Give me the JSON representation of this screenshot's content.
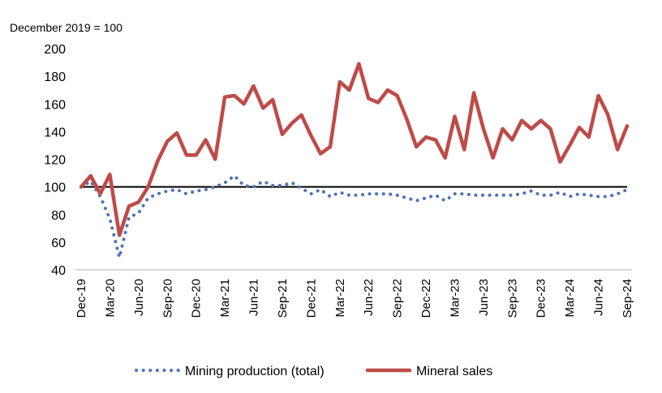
{
  "chart_data": {
    "type": "line",
    "title": "",
    "unit_label": "December 2019 = 100",
    "xlabel": "",
    "ylabel": "",
    "ylim": [
      40,
      200
    ],
    "yticks": [
      40,
      60,
      80,
      100,
      120,
      140,
      160,
      180,
      200
    ],
    "reference_line": 100,
    "grid": false,
    "legend_position": "bottom",
    "x": [
      "Dec-19",
      "Jan-20",
      "Feb-20",
      "Mar-20",
      "Apr-20",
      "May-20",
      "Jun-20",
      "Jul-20",
      "Aug-20",
      "Sep-20",
      "Oct-20",
      "Nov-20",
      "Dec-20",
      "Jan-21",
      "Feb-21",
      "Mar-21",
      "Apr-21",
      "May-21",
      "Jun-21",
      "Jul-21",
      "Aug-21",
      "Sep-21",
      "Oct-21",
      "Nov-21",
      "Dec-21",
      "Jan-22",
      "Feb-22",
      "Mar-22",
      "Apr-22",
      "May-22",
      "Jun-22",
      "Jul-22",
      "Aug-22",
      "Sep-22",
      "Oct-22",
      "Nov-22",
      "Dec-22",
      "Jan-23",
      "Feb-23",
      "Mar-23",
      "Apr-23",
      "May-23",
      "Jun-23",
      "Jul-23",
      "Aug-23",
      "Sep-23",
      "Oct-23",
      "Nov-23",
      "Dec-23",
      "Jan-24",
      "Feb-24",
      "Mar-24",
      "Apr-24",
      "May-24",
      "Jun-24",
      "Jul-24",
      "Aug-24",
      "Sep-24"
    ],
    "xtick_labels": [
      "Dec-19",
      "Mar-20",
      "Jun-20",
      "Sep-20",
      "Dec-20",
      "Mar-21",
      "Jun-21",
      "Sep-21",
      "Dec-21",
      "Mar-22",
      "Jun-22",
      "Sep-22",
      "Dec-22",
      "Mar-23",
      "Jun-23",
      "Sep-23",
      "Dec-23",
      "Mar-24",
      "Jun-24",
      "Sep-24"
    ],
    "series": [
      {
        "name": "Mining production (total)",
        "style": "dotted",
        "color": "#4F73B4",
        "values": [
          100,
          104,
          93,
          77,
          49,
          78,
          81,
          92,
          95,
          97,
          98,
          95,
          97,
          98,
          100,
          103,
          108,
          101,
          100,
          104,
          101,
          101,
          103,
          99,
          95,
          98,
          93,
          96,
          94,
          94,
          95,
          95,
          95,
          94,
          92,
          90,
          92,
          94,
          90,
          95,
          95,
          94,
          94,
          94,
          94,
          94,
          95,
          97,
          94,
          94,
          96,
          93,
          95,
          94,
          93,
          93,
          95,
          98
        ]
      },
      {
        "name": "Mineral sales",
        "style": "solid",
        "color": "#BE4B48",
        "values": [
          100,
          108,
          95,
          109,
          65,
          86,
          89,
          100,
          119,
          133,
          139,
          123,
          123,
          134,
          120,
          165,
          166,
          160,
          173,
          157,
          163,
          138,
          146,
          152,
          137,
          124,
          129,
          176,
          170,
          189,
          164,
          161,
          170,
          166,
          149,
          129,
          136,
          134,
          121,
          151,
          127,
          168,
          142,
          121,
          142,
          134,
          148,
          142,
          148,
          142,
          118,
          130,
          143,
          136,
          166,
          152,
          127,
          144
        ]
      }
    ]
  }
}
